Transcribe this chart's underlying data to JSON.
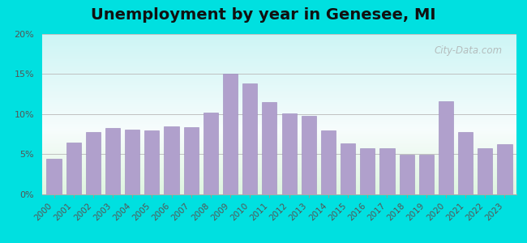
{
  "title": "Unemployment by year in Genesee, MI",
  "years": [
    2000,
    2001,
    2002,
    2003,
    2004,
    2005,
    2006,
    2007,
    2008,
    2009,
    2010,
    2011,
    2012,
    2013,
    2014,
    2015,
    2016,
    2017,
    2018,
    2019,
    2020,
    2021,
    2022,
    2023
  ],
  "values": [
    4.4,
    6.5,
    7.8,
    8.3,
    8.1,
    8.0,
    8.5,
    8.4,
    10.2,
    15.0,
    13.8,
    11.5,
    10.1,
    9.8,
    8.0,
    6.4,
    5.8,
    5.8,
    4.9,
    4.9,
    11.6,
    7.8,
    5.8,
    6.3
  ],
  "bar_color": "#b0a0cc",
  "bar_edge_color": "#9988bb",
  "ylim": [
    0,
    20
  ],
  "yticks": [
    0,
    5,
    10,
    15,
    20
  ],
  "ytick_labels": [
    "0%",
    "5%",
    "10%",
    "15%",
    "20%"
  ],
  "title_fontsize": 14,
  "tick_fontsize": 8,
  "bg_top_color": "#cdf5f5",
  "bg_bottom_color": "#dff5e0",
  "watermark_text": "City-Data.com",
  "outer_bg_color": "#00e0e0"
}
